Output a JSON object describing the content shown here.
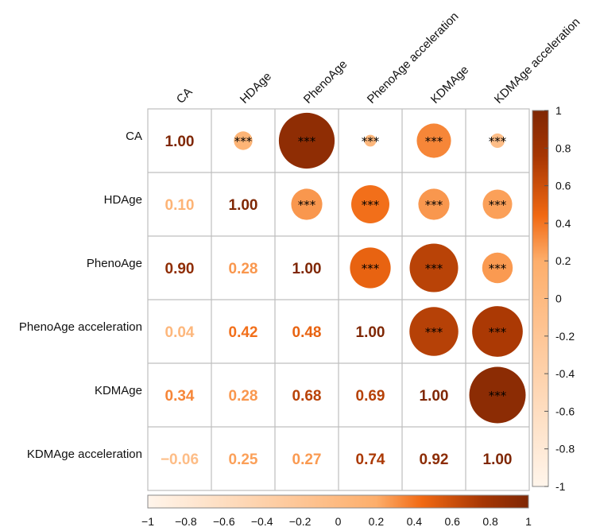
{
  "chart_data": {
    "type": "heatmap",
    "variables": [
      "CA",
      "HDAge",
      "PhenoAge",
      "PhenoAge acceleration",
      "KDMAge",
      "KDMAge acceleration"
    ],
    "matrix": [
      [
        1.0,
        0.1,
        0.9,
        0.04,
        0.34,
        -0.06
      ],
      [
        0.1,
        1.0,
        0.28,
        0.42,
        0.28,
        0.25
      ],
      [
        0.9,
        0.28,
        1.0,
        0.48,
        0.68,
        0.27
      ],
      [
        0.04,
        0.42,
        0.48,
        1.0,
        0.69,
        0.74
      ],
      [
        0.34,
        0.28,
        0.68,
        0.69,
        1.0,
        0.92
      ],
      [
        -0.06,
        0.25,
        0.27,
        0.74,
        0.92,
        1.0
      ]
    ],
    "lower_labels": [
      [
        "1.00"
      ],
      [
        "0.10",
        "1.00"
      ],
      [
        "0.90",
        "0.28",
        "1.00"
      ],
      [
        "0.04",
        "0.42",
        "0.48",
        "1.00"
      ],
      [
        "0.34",
        "0.28",
        "0.68",
        "0.69",
        "1.00"
      ],
      [
        "−0.06",
        "0.25",
        "0.27",
        "0.74",
        "0.92",
        "1.00"
      ]
    ],
    "significance": "***",
    "upper_display": "circle",
    "lower_display": "number",
    "color_scale": {
      "min": -1,
      "max": 1,
      "colors": [
        "#fff5eb",
        "#fdae6b",
        "#f16913",
        "#a63603",
        "#7f2704"
      ]
    },
    "right_colorbar_ticks": [
      "1",
      "0.8",
      "0.6",
      "0.4",
      "0.2",
      "0",
      "-0.2",
      "-0.4",
      "-0.6",
      "-0.8",
      "-1"
    ],
    "bottom_colorbar_ticks": [
      "−1",
      "−0.8",
      "−0.6",
      "−0.4",
      "−0.2",
      "0",
      "0.2",
      "0.4",
      "0.6",
      "0.8",
      "1"
    ]
  }
}
